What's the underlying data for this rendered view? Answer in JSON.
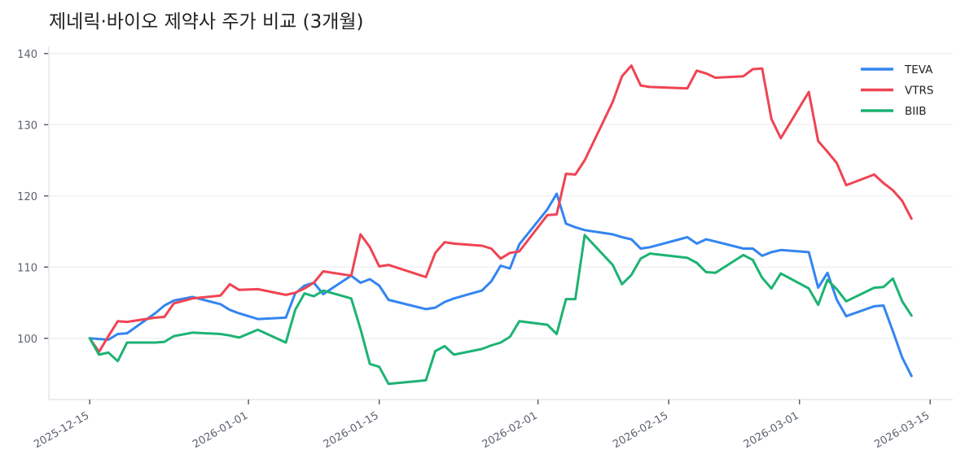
{
  "chart_data": {
    "type": "line",
    "title": "제네릭·바이오 제약사 주가 비교 (3개월)",
    "xlabel": "",
    "ylabel": "",
    "xlim": [
      "2025-12-10T15:00",
      "2026-03-17T10:00"
    ],
    "ylim": [
      91.4,
      141
    ],
    "grid": true,
    "legend_position": "top-right",
    "x_ticks": [
      "2025-12-15",
      "2026-01-01",
      "2026-01-15",
      "2026-02-01",
      "2026-02-15",
      "2026-03-01",
      "2026-03-15"
    ],
    "y_ticks": [
      100,
      110,
      120,
      130,
      140
    ],
    "x": [
      "2025-12-15",
      "2025-12-16",
      "2025-12-17",
      "2025-12-18",
      "2025-12-19",
      "2025-12-22",
      "2025-12-23",
      "2025-12-24",
      "2025-12-26",
      "2025-12-29",
      "2025-12-30",
      "2025-12-31",
      "2026-01-02",
      "2026-01-05",
      "2026-01-06",
      "2026-01-07",
      "2026-01-08",
      "2026-01-09",
      "2026-01-12",
      "2026-01-13",
      "2026-01-14",
      "2026-01-15",
      "2026-01-16",
      "2026-01-20",
      "2026-01-21",
      "2026-01-22",
      "2026-01-23",
      "2026-01-26",
      "2026-01-27",
      "2026-01-28",
      "2026-01-29",
      "2026-01-30",
      "2026-02-02",
      "2026-02-03",
      "2026-02-04",
      "2026-02-05",
      "2026-02-06",
      "2026-02-09",
      "2026-02-10",
      "2026-02-11",
      "2026-02-12",
      "2026-02-13",
      "2026-02-17",
      "2026-02-18",
      "2026-02-19",
      "2026-02-20",
      "2026-02-23",
      "2026-02-24",
      "2026-02-25",
      "2026-02-26",
      "2026-02-27",
      "2026-03-02",
      "2026-03-03",
      "2026-03-04",
      "2026-03-05",
      "2026-03-06",
      "2026-03-09",
      "2026-03-10",
      "2026-03-11",
      "2026-03-12",
      "2026-03-13"
    ],
    "series": [
      {
        "name": "TEVA",
        "color": "#3385f0",
        "values": [
          100,
          99.9,
          99.8,
          100.6,
          100.7,
          103.5,
          104.6,
          105.3,
          105.8,
          104.8,
          104.0,
          103.5,
          102.7,
          102.9,
          106.3,
          107.4,
          107.8,
          106.2,
          108.8,
          107.8,
          108.3,
          107.4,
          105.4,
          104.1,
          104.3,
          105.1,
          105.6,
          106.7,
          108.0,
          110.2,
          109.8,
          113.2,
          118.1,
          120.3,
          116.1,
          115.6,
          115.2,
          114.6,
          114.2,
          113.9,
          112.6,
          112.8,
          114.2,
          113.3,
          113.9,
          113.6,
          112.6,
          112.6,
          111.6,
          112.1,
          112.4,
          112.1,
          107.1,
          109.2,
          105.4,
          103.1,
          104.5,
          104.6,
          101.0,
          97.3,
          94.7
        ]
      },
      {
        "name": "VTRS",
        "color": "#ef4453",
        "values": [
          100,
          98.1,
          100.3,
          102.4,
          102.3,
          102.9,
          103.0,
          104.9,
          105.6,
          106.0,
          107.6,
          106.8,
          106.9,
          106.1,
          106.4,
          107.0,
          107.8,
          109.4,
          108.8,
          114.6,
          112.8,
          110.1,
          110.3,
          108.6,
          112.0,
          113.5,
          113.3,
          113.0,
          112.6,
          111.2,
          112.0,
          112.2,
          117.3,
          117.4,
          123.1,
          123.0,
          125.0,
          133.2,
          136.8,
          138.3,
          135.5,
          135.3,
          135.1,
          137.6,
          137.2,
          136.6,
          136.8,
          137.8,
          137.9,
          130.8,
          128.1,
          134.6,
          127.7,
          126.2,
          124.6,
          121.5,
          123.0,
          121.8,
          120.8,
          119.3,
          116.8
        ]
      },
      {
        "name": "BIIB",
        "color": "#1db373",
        "values": [
          100,
          97.7,
          98.0,
          96.8,
          99.4,
          99.4,
          99.5,
          100.3,
          100.8,
          100.6,
          100.4,
          100.1,
          101.2,
          99.4,
          104.0,
          106.3,
          105.9,
          106.7,
          105.6,
          101.3,
          96.4,
          96.0,
          93.6,
          94.1,
          98.2,
          98.9,
          97.7,
          98.5,
          99.0,
          99.4,
          100.2,
          102.4,
          101.9,
          100.6,
          105.5,
          105.5,
          114.5,
          110.3,
          107.6,
          108.9,
          111.2,
          111.9,
          111.3,
          110.6,
          109.3,
          109.2,
          111.7,
          111.0,
          108.5,
          107.0,
          109.1,
          107.0,
          104.7,
          108.2,
          106.9,
          105.2,
          107.1,
          107.2,
          108.4,
          105.2,
          103.2
        ]
      }
    ]
  }
}
